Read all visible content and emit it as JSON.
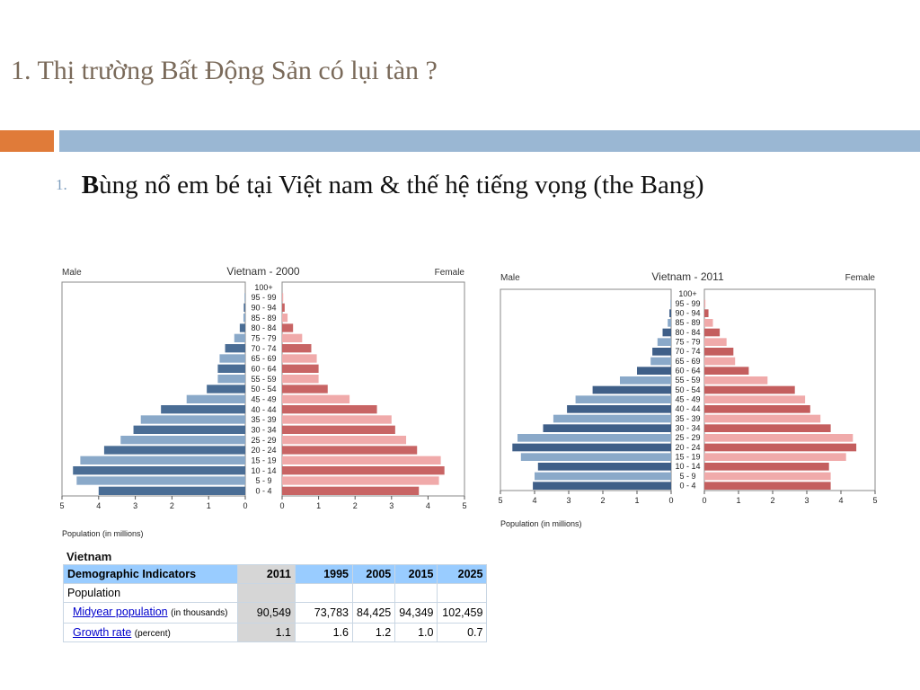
{
  "slide": {
    "title": "1. Thị trường Bất Động Sản có lụi tàn ?",
    "bullet_number": "1.",
    "bullet_first_letter": "B",
    "bullet_rest": "ùng nổ em bé tại Việt nam & thế hệ tiếng vọng (the Bang)",
    "colors": {
      "accent_orange": "#e07b39",
      "accent_blue": "#9ab7d3"
    }
  },
  "chart_data": [
    {
      "type": "bar",
      "title": "Vietnam - 2000",
      "left_label": "Male",
      "right_label": "Female",
      "xlabel": "Population (in millions)",
      "xlim": [
        0,
        5
      ],
      "ticks": [
        "5",
        "4",
        "3",
        "2",
        "1",
        "0",
        "0",
        "1",
        "2",
        "3",
        "4",
        "5"
      ],
      "categories": [
        "100+",
        "95 - 99",
        "90 - 94",
        "85 - 89",
        "80 - 84",
        "75 - 79",
        "70 - 74",
        "65 - 69",
        "60 - 64",
        "55 - 59",
        "50 - 54",
        "45 - 49",
        "40 - 44",
        "35 - 39",
        "30 - 34",
        "25 - 29",
        "20 - 24",
        "15 - 19",
        "10 - 14",
        "5 - 9",
        "0 - 4"
      ],
      "series": [
        {
          "name": "Male",
          "values": [
            0,
            0.02,
            0.04,
            0.05,
            0.15,
            0.3,
            0.55,
            0.7,
            0.75,
            0.75,
            1.05,
            1.6,
            2.3,
            2.85,
            3.05,
            3.4,
            3.85,
            4.5,
            4.7,
            4.6,
            4.0
          ]
        },
        {
          "name": "Female",
          "values": [
            0,
            0.03,
            0.07,
            0.15,
            0.3,
            0.55,
            0.8,
            0.95,
            1.0,
            1.0,
            1.25,
            1.85,
            2.6,
            3.0,
            3.1,
            3.4,
            3.7,
            4.35,
            4.45,
            4.3,
            3.75
          ]
        }
      ],
      "colors": {
        "male_dark": "#4a6d95",
        "male_light": "#8aa9c9",
        "female_dark": "#c86464",
        "female_light": "#f0aaaa"
      }
    },
    {
      "type": "bar",
      "title": "Vietnam - 2011",
      "left_label": "Male",
      "right_label": "Female",
      "xlabel": "Population (in millions)",
      "xlim": [
        0,
        5
      ],
      "ticks": [
        "5",
        "4",
        "3",
        "2",
        "1",
        "0",
        "0",
        "1",
        "2",
        "3",
        "4",
        "5"
      ],
      "categories": [
        "100+",
        "95 - 99",
        "90 - 94",
        "85 - 89",
        "80 - 84",
        "75 - 79",
        "70 - 74",
        "65 - 69",
        "60 - 64",
        "55 - 59",
        "50 - 54",
        "45 - 49",
        "40 - 44",
        "35 - 39",
        "30 - 34",
        "25 - 29",
        "20 - 24",
        "15 - 19",
        "10 - 14",
        "5 - 9",
        "0 - 4"
      ],
      "series": [
        {
          "name": "Male",
          "values": [
            0,
            0.02,
            0.05,
            0.1,
            0.25,
            0.4,
            0.55,
            0.6,
            1.0,
            1.5,
            2.3,
            2.8,
            3.05,
            3.45,
            3.75,
            4.5,
            4.65,
            4.4,
            3.9,
            4.0,
            4.05
          ]
        },
        {
          "name": "Female",
          "values": [
            0,
            0.03,
            0.12,
            0.25,
            0.45,
            0.65,
            0.85,
            0.9,
            1.3,
            1.85,
            2.65,
            2.95,
            3.1,
            3.4,
            3.7,
            4.35,
            4.45,
            4.15,
            3.65,
            3.7,
            3.7
          ]
        }
      ],
      "colors": {
        "male_dark": "#3f5f88",
        "male_light": "#8aa9c9",
        "female_dark": "#c45e5e",
        "female_light": "#f0aaaa"
      }
    },
    {
      "type": "table",
      "caption": "Vietnam",
      "columns": [
        "Demographic Indicators",
        "2011",
        "1995",
        "2005",
        "2015",
        "2025"
      ],
      "rows": [
        {
          "label": "Population",
          "values": [
            "",
            "",
            "",
            "",
            ""
          ]
        },
        {
          "label": "Midyear population",
          "note": "(in thousands)",
          "values": [
            "90,549",
            "73,783",
            "84,425",
            "94,349",
            "102,459"
          ]
        },
        {
          "label": "Growth rate",
          "note": "(percent)",
          "values": [
            "1.1",
            "1.6",
            "1.2",
            "1.0",
            "0.7"
          ]
        }
      ]
    }
  ]
}
